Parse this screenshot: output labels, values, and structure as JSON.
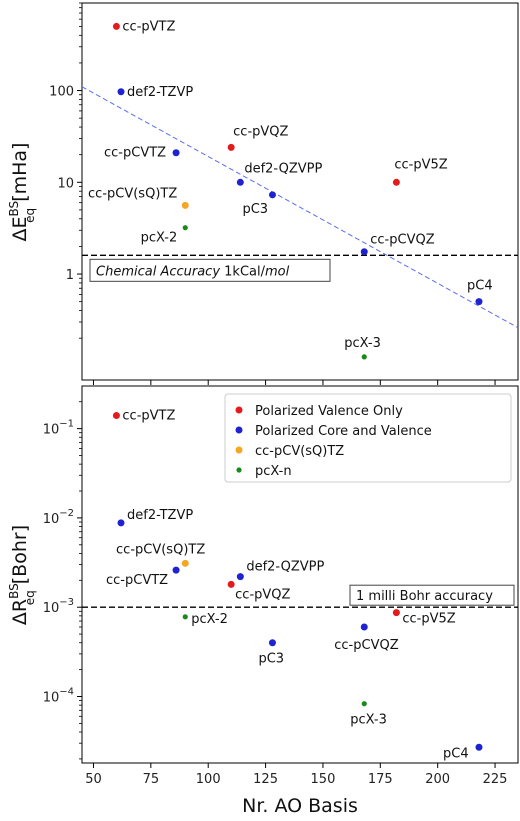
{
  "colors": {
    "polarized_valence_only": "#e41a1c",
    "polarized_core_and_valence": "#1f22d0",
    "cc_pcv_sq_tz": "#f5a623",
    "pcx_n": "#1a8a1a",
    "fit_line": "#5a6ef0"
  },
  "x_axis": {
    "label": "Nr. AO Basis",
    "ticks": [
      "50",
      "75",
      "100",
      "125",
      "150",
      "175",
      "200",
      "225"
    ]
  },
  "chart_data": [
    {
      "type": "scatter",
      "ylabel": "ΔE_eq^BS [mHa]",
      "ylabel_main": "ΔE",
      "ylabel_sup": "BS",
      "ylabel_sub": "eq",
      "ylabel_unit": " [mHa]",
      "yscale": "log",
      "xlim": [
        45,
        235
      ],
      "ylim": [
        0.07,
        900
      ],
      "y_ticks": [
        {
          "value": 1,
          "label": "1"
        },
        {
          "value": 10,
          "label": "10"
        },
        {
          "value": 100,
          "label": "100"
        }
      ],
      "points": [
        {
          "x": 60,
          "y": 500,
          "label": "cc-pVTZ",
          "group": "polarized_valence_only"
        },
        {
          "x": 62,
          "y": 97,
          "label": "def2-TZVP",
          "group": "polarized_core_and_valence"
        },
        {
          "x": 86,
          "y": 21,
          "label": "cc-pCVTZ",
          "group": "polarized_core_and_valence"
        },
        {
          "x": 90,
          "y": 5.6,
          "label": "cc-pCV(sQ)TZ",
          "group": "cc_pcv_sq_tz"
        },
        {
          "x": 90,
          "y": 3.2,
          "label": "pcX-2",
          "group": "pcx_n"
        },
        {
          "x": 110,
          "y": 24,
          "label": "cc-pVQZ",
          "group": "polarized_valence_only"
        },
        {
          "x": 114,
          "y": 10,
          "label": "def2-QZVPP",
          "group": "polarized_core_and_valence"
        },
        {
          "x": 128,
          "y": 7.3,
          "label": "pC3",
          "group": "polarized_core_and_valence"
        },
        {
          "x": 168,
          "y": 1.75,
          "label": "cc-pCVQZ",
          "group": "polarized_core_and_valence"
        },
        {
          "x": 182,
          "y": 10,
          "label": "cc-pV5Z",
          "group": "polarized_valence_only"
        },
        {
          "x": 218,
          "y": 0.5,
          "label": "pC4",
          "group": "polarized_core_and_valence"
        },
        {
          "x": 168,
          "y": 0.125,
          "label": "pcX-3",
          "group": "pcx_n"
        }
      ],
      "fit_line": {
        "x": [
          45,
          235
        ],
        "y": [
          110,
          0.26
        ]
      },
      "threshold": {
        "y": 1.6,
        "label_italic": "Chemical Accuracy",
        "label_plain": " 1kCal/",
        "label_italic2": "mol"
      }
    },
    {
      "type": "scatter",
      "ylabel": "ΔR_eq^BS [Bohr]",
      "ylabel_main": "ΔR",
      "ylabel_sup": "BS",
      "ylabel_sub": "eq",
      "ylabel_unit": " [Bohr]",
      "yscale": "log",
      "xlim": [
        45,
        235
      ],
      "ylim": [
        1.8e-05,
        0.3
      ],
      "y_ticks": [
        {
          "value": 0.0001,
          "base": "10",
          "exp": "−4"
        },
        {
          "value": 0.001,
          "base": "10",
          "exp": "−3"
        },
        {
          "value": 0.01,
          "base": "10",
          "exp": "−2"
        },
        {
          "value": 0.1,
          "base": "10",
          "exp": "−1"
        }
      ],
      "points": [
        {
          "x": 60,
          "y": 0.14,
          "label": "cc-pVTZ",
          "group": "polarized_valence_only"
        },
        {
          "x": 62,
          "y": 0.0088,
          "label": "def2-TZVP",
          "group": "polarized_core_and_valence"
        },
        {
          "x": 86,
          "y": 0.0026,
          "label": "cc-pCVTZ",
          "group": "polarized_core_and_valence"
        },
        {
          "x": 90,
          "y": 0.0031,
          "label": "cc-pCV(sQ)TZ",
          "group": "cc_pcv_sq_tz"
        },
        {
          "x": 90,
          "y": 0.00078,
          "label": "pcX-2",
          "group": "pcx_n"
        },
        {
          "x": 110,
          "y": 0.0018,
          "label": "cc-pVQZ",
          "group": "polarized_valence_only"
        },
        {
          "x": 114,
          "y": 0.0022,
          "label": "def2-QZVPP",
          "group": "polarized_core_and_valence"
        },
        {
          "x": 128,
          "y": 0.0004,
          "label": "pC3",
          "group": "polarized_core_and_valence"
        },
        {
          "x": 168,
          "y": 0.0006,
          "label": "cc-pCVQZ",
          "group": "polarized_core_and_valence"
        },
        {
          "x": 182,
          "y": 0.00087,
          "label": "cc-pV5Z",
          "group": "polarized_valence_only"
        },
        {
          "x": 168,
          "y": 8.3e-05,
          "label": "pcX-3",
          "group": "pcx_n"
        },
        {
          "x": 218,
          "y": 2.7e-05,
          "label": "pC4",
          "group": "polarized_core_and_valence"
        }
      ],
      "threshold": {
        "y": 0.001,
        "label": "1 milli Bohr accuracy"
      },
      "legend": {
        "position": "top-right",
        "entries": [
          {
            "group": "polarized_valence_only",
            "label": "Polarized Valence Only"
          },
          {
            "group": "polarized_core_and_valence",
            "label": "Polarized Core and Valence"
          },
          {
            "group": "cc_pcv_sq_tz",
            "label": "cc-pCV(sQ)TZ"
          },
          {
            "group": "pcx_n",
            "label": "pcX-n"
          }
        ]
      }
    }
  ]
}
